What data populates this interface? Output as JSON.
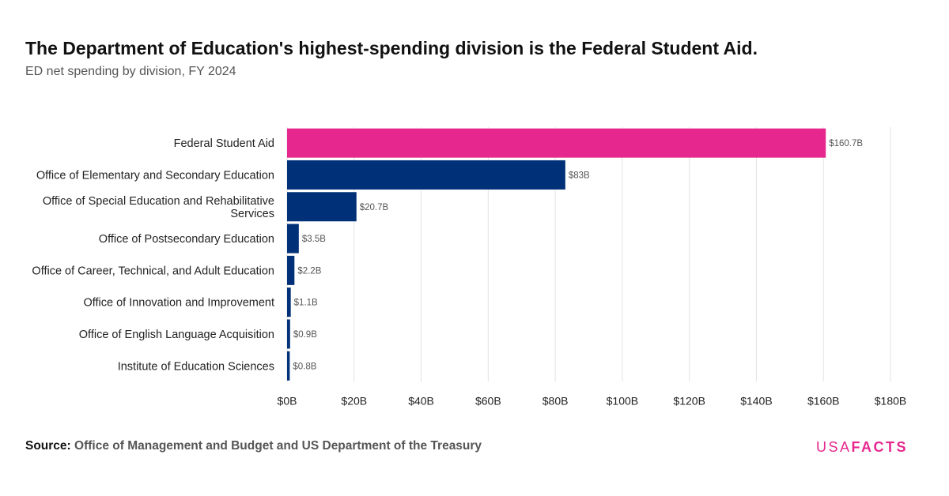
{
  "header": {
    "title": "The Department of Education's highest-spending division is the Federal Student Aid.",
    "subtitle": "ED net spending by division, FY 2024"
  },
  "chart_data": {
    "type": "bar",
    "orientation": "horizontal",
    "categories": [
      "Federal Student Aid",
      "Office of Elementary and Secondary Education",
      "Office of Special Education and Rehabilitative Services",
      "Office of Postsecondary Education",
      "Office of Career, Technical, and Adult Education",
      "Office of Innovation and Improvement",
      "Office of English Language Acquisition",
      "Institute of Education Sciences"
    ],
    "category_label_lines": [
      [
        "Federal Student Aid"
      ],
      [
        "Office of Elementary and Secondary Education"
      ],
      [
        "Office of Special Education and Rehabilitative",
        "Services"
      ],
      [
        "Office of Postsecondary Education"
      ],
      [
        "Office of Career, Technical, and Adult Education"
      ],
      [
        "Office of Innovation and Improvement"
      ],
      [
        "Office of English Language Acquisition"
      ],
      [
        "Institute of Education Sciences"
      ]
    ],
    "values": [
      160.7,
      83,
      20.7,
      3.5,
      2.2,
      1.1,
      0.9,
      0.8
    ],
    "value_labels": [
      "$160.7B",
      "$83B",
      "$20.7B",
      "$3.5B",
      "$2.2B",
      "$1.1B",
      "$0.9B",
      "$0.8B"
    ],
    "unit": "billions of dollars",
    "xlim": [
      0,
      180
    ],
    "x_ticks": [
      0,
      20,
      40,
      60,
      80,
      100,
      120,
      140,
      160,
      180
    ],
    "x_tick_labels": [
      "$0B",
      "$20B",
      "$40B",
      "$60B",
      "$80B",
      "$100B",
      "$120B",
      "$140B",
      "$160B",
      "$180B"
    ],
    "grid": true,
    "colors": {
      "highlight": "#e6288e",
      "default": "#003077",
      "grid": "#e3e3e3"
    },
    "highlight_index": 0
  },
  "footer": {
    "source_key": "Source:",
    "source_value": "Office of Management and Budget and US Department of the Treasury",
    "logo_usa": "USA",
    "logo_facts": "FACTS"
  }
}
